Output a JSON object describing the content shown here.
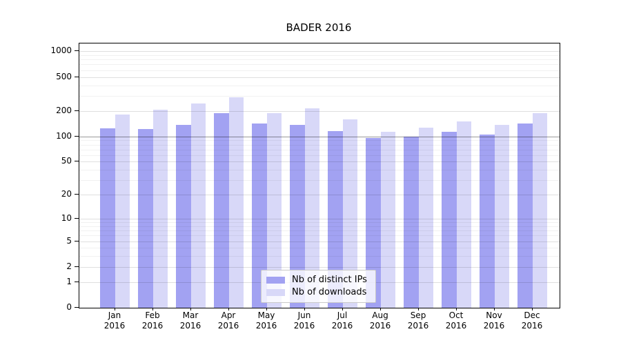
{
  "figure": {
    "title": "BADER 2016"
  },
  "colors": {
    "distinct_ips": "#a2a2f2",
    "downloads": "#d8d8f8",
    "grid_minor": "rgba(0,0,0,0.055)",
    "grid_major": "rgba(0,0,0,0.125)",
    "grid_emphasis": "rgba(0,0,0,0.40)",
    "axis": "#000000"
  },
  "legend": {
    "items": [
      {
        "label": "Nb of distinct IPs",
        "series_key": "distinct_ips"
      },
      {
        "label": "Nb of downloads",
        "series_key": "downloads"
      }
    ]
  },
  "chart_data": {
    "type": "bar",
    "title": "BADER 2016",
    "categories": [
      "Jan",
      "Feb",
      "Mar",
      "Apr",
      "May",
      "Jun",
      "Jul",
      "Aug",
      "Sep",
      "Oct",
      "Nov",
      "Dec"
    ],
    "category_year": "2016",
    "series": [
      {
        "name": "Nb of distinct IPs",
        "key": "distinct_ips",
        "values": [
          124,
          123,
          136,
          189,
          143,
          136,
          115,
          96,
          100,
          113,
          105,
          141
        ]
      },
      {
        "name": "Nb of downloads",
        "key": "downloads",
        "values": [
          181,
          207,
          243,
          290,
          188,
          216,
          159,
          113,
          127,
          151,
          136,
          189
        ]
      }
    ],
    "xlabel": "",
    "ylabel": "",
    "y_scale": "log1p",
    "y_ticks": [
      0,
      1,
      2,
      5,
      10,
      20,
      50,
      100,
      200,
      500,
      1000
    ],
    "y_minor_gridlines": [
      3,
      4,
      6,
      7,
      8,
      9,
      30,
      40,
      60,
      70,
      80,
      90,
      300,
      400,
      600,
      700,
      800,
      900
    ],
    "emphasized_gridline": 100,
    "ylim": [
      0,
      1250
    ],
    "grid": true,
    "legend_position": "lower center"
  }
}
